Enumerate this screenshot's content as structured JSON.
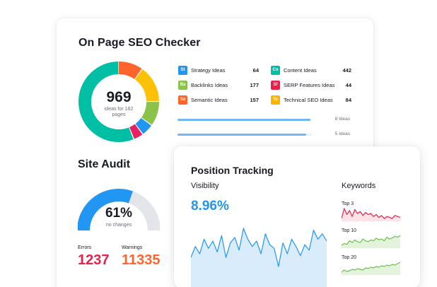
{
  "seo_checker": {
    "title": "On Page SEO Checker",
    "total": "969",
    "total_caption": "ideas for 182 pages",
    "donut_segments": [
      {
        "color": "#ff642d",
        "value": 10
      },
      {
        "color": "#ffc107",
        "value": 15
      },
      {
        "color": "#8bc34a",
        "value": 10
      },
      {
        "color": "#2196f3",
        "value": 5
      },
      {
        "color": "#e91e63",
        "value": 4
      },
      {
        "color": "#00bfa5",
        "value": 56
      }
    ],
    "ideas": [
      {
        "badge": "St",
        "color": "#2196f3",
        "label": "Strategy Ideas",
        "count": "64"
      },
      {
        "badge": "Ba",
        "color": "#8bc34a",
        "label": "Backlinks Ideas",
        "count": "177"
      },
      {
        "badge": "Se",
        "color": "#ff642d",
        "label": "Semantic Ideas",
        "count": "157"
      },
      {
        "badge": "Co",
        "color": "#00bfa5",
        "label": "Content Ideas",
        "count": "442"
      },
      {
        "badge": "Sf",
        "color": "#e8204a",
        "label": "SERP Features Ideas",
        "count": "44"
      },
      {
        "badge": "Te",
        "color": "#ffb300",
        "label": "Technical SEO Ideas",
        "count": "84"
      }
    ],
    "progress": [
      {
        "label": "8 Ideas",
        "fraction": 0.99
      },
      {
        "label": "5 Ideas",
        "fraction": 0.96
      }
    ]
  },
  "site_audit": {
    "title": "Site Audit",
    "value": "61%",
    "caption": "no changes",
    "fraction": 0.61,
    "gauge_color": "#2196f3",
    "gauge_track_color": "#e4e5ea",
    "errors_label": "Errors",
    "errors_value": "1237",
    "errors_color": "#e8204a",
    "warnings_label": "Warnings",
    "warnings_value": "11335",
    "warnings_color": "#ff642d"
  },
  "position_tracking": {
    "title": "Position Tracking",
    "visibility_label": "Visibility",
    "visibility_value": "8.96%",
    "visibility_trend": [
      40,
      52,
      44,
      60,
      50,
      58,
      46,
      64,
      40,
      56,
      62,
      48,
      72,
      60,
      52,
      58,
      44,
      66,
      54,
      50,
      30,
      56,
      44,
      60,
      52,
      42,
      54,
      48,
      70,
      60,
      66,
      58
    ],
    "keywords_title": "Keywords",
    "keywords": [
      {
        "label": "Top 3",
        "color": "#e8204a",
        "fill": "#fde3e8",
        "trend": [
          30,
          80,
          50,
          70,
          40,
          75,
          55,
          65,
          45,
          60,
          50,
          55,
          40,
          50,
          35,
          45,
          30,
          40,
          35,
          30,
          45,
          40,
          35
        ]
      },
      {
        "label": "Top 10",
        "color": "#6cc04a",
        "fill": "#e4f4dc",
        "trend": [
          20,
          30,
          25,
          45,
          35,
          50,
          40,
          35,
          55,
          45,
          40,
          50,
          45,
          60,
          50,
          55,
          45,
          65,
          55,
          60,
          70,
          65,
          75
        ]
      },
      {
        "label": "Top 20",
        "color": "#6cc04a",
        "fill": "#e4f4dc",
        "trend": [
          10,
          25,
          15,
          20,
          30,
          25,
          35,
          30,
          25,
          40,
          35,
          45,
          40,
          50,
          45,
          55,
          50,
          60,
          55,
          65,
          60,
          70,
          80
        ]
      }
    ]
  }
}
